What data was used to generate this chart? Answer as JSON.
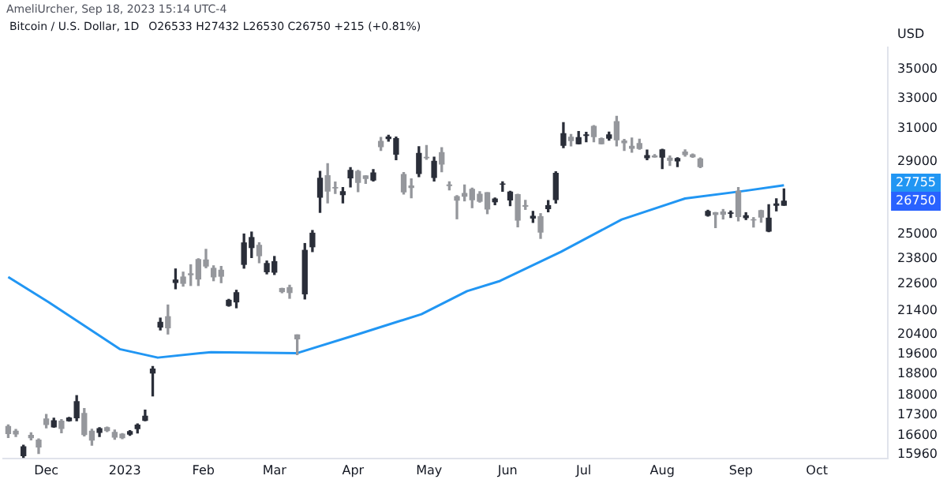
{
  "chart_data": {
    "type": "candlestick",
    "title": "Bitcoin / U.S. Dollar, 1D",
    "subtitle": "O26533 H27432 L26530 C26750 +215 (+0.81%)",
    "ylabel": "USD",
    "annotations": [
      "AmeliUrcher, Sep 18, 2023 15:14 UTC-4",
      {
        "text": "27755",
        "y": 27755
      },
      {
        "text": "26750",
        "y": 26750
      }
    ],
    "log": "y",
    "legend": false,
    "marker": "none",
    "xlim": [
      "2022-11-14",
      "2023-10-29"
    ],
    "xticks": [
      {
        "value": "2022-12-01",
        "label": "Dec"
      },
      {
        "value": "2023-01-01",
        "label": "2023"
      },
      {
        "value": "2023-02-01",
        "label": "Feb"
      },
      {
        "value": "2023-03-01",
        "label": "Mar"
      },
      {
        "value": "2023-04-01",
        "label": "Apr"
      },
      {
        "value": "2023-05-01",
        "label": "May"
      },
      {
        "value": "2023-06-01",
        "label": "Jun"
      },
      {
        "value": "2023-07-01",
        "label": "Jul"
      },
      {
        "value": "2023-08-01",
        "label": "Aug"
      },
      {
        "value": "2023-09-01",
        "label": "Sep"
      },
      {
        "value": "2023-10-01",
        "label": "Oct"
      }
    ],
    "ylim": [
      15840,
      36600
    ],
    "yticks": [
      15960,
      16600,
      17300,
      18000,
      18800,
      19600,
      20400,
      21400,
      22600,
      23800,
      25000,
      29000,
      31000,
      33000,
      35000
    ],
    "series": [
      {
        "type": "candlestick",
        "colors": [
          "#95979c",
          "#95979c",
          "#2a2e39",
          "#95979c",
          "#95979c",
          "#95979c",
          "#2a2e39",
          "#95979c",
          "#2a2e39",
          "#2a2e39",
          "#95979c",
          "#95979c",
          "#2a2e39",
          "#95979c",
          "#95979c",
          "#95979c",
          "#2a2e39",
          "#2a2e39",
          "#2a2e39",
          "#2a2e39",
          "#2a2e39",
          "#95979c",
          "#2a2e39",
          "#95979c",
          "#95979c",
          "#95979c",
          "#95979c",
          "#95979c",
          "#95979c",
          "#2a2e39",
          "#2a2e39",
          "#2a2e39",
          "#2a2e39",
          "#95979c",
          "#2a2e39",
          "#2a2e39",
          "#95979c",
          "#95979c",
          "#95979c",
          "#2a2e39",
          "#2a2e39",
          "#2a2e39",
          "#95979c",
          "#95979c",
          "#2a2e39",
          "#2a2e39",
          "#95979c",
          "#95979c",
          "#2a2e39",
          "#95979c",
          "#2a2e39",
          "#2a2e39",
          "#95979c",
          "#95979c",
          "#2a2e39",
          "#95979c",
          "#2a2e39",
          "#95979c",
          "#95979c",
          "#95979c",
          "#95979c",
          "#95979c",
          "#95979c",
          "#95979c",
          "#2a2e39",
          "#2a2e39",
          "#2a2e39",
          "#95979c",
          "#95979c",
          "#2a2e39",
          "#95979c",
          "#2a2e39",
          "#2a2e39",
          "#2a2e39",
          "#95979c",
          "#2a2e39",
          "#2a2e39",
          "#95979c",
          "#95979c",
          "#2a2e39",
          "#95979c",
          "#95979c",
          "#95979c",
          "#95979c",
          "#2a2e39",
          "#95979c",
          "#2a2e39",
          "#95979c",
          "#2a2e39",
          "#95979c",
          "#95979c",
          "#95979c",
          "#2a2e39",
          "#95979c",
          "#95979c",
          "#2a2e39",
          "#95979c",
          "#2a2e39",
          "#95979c",
          "#95979c",
          "#2a2e39",
          "#2a2e39",
          "#2a2e39"
        ],
        "x": [
          "2022-11-16",
          "2022-11-19",
          "2022-11-22",
          "2022-11-25",
          "2022-11-28",
          "2022-12-01",
          "2022-12-04",
          "2022-12-07",
          "2022-12-10",
          "2022-12-13",
          "2022-12-16",
          "2022-12-19",
          "2022-12-22",
          "2022-12-25",
          "2022-12-28",
          "2022-12-31",
          "2023-01-03",
          "2023-01-06",
          "2023-01-09",
          "2023-01-12",
          "2023-01-15",
          "2023-01-18",
          "2023-01-21",
          "2023-01-24",
          "2023-01-27",
          "2023-01-30",
          "2023-02-02",
          "2023-02-05",
          "2023-02-08",
          "2023-02-11",
          "2023-02-14",
          "2023-02-17",
          "2023-02-20",
          "2023-02-23",
          "2023-02-26",
          "2023-03-01",
          "2023-03-04",
          "2023-03-07",
          "2023-03-10",
          "2023-03-13",
          "2023-03-16",
          "2023-03-19",
          "2023-03-22",
          "2023-03-25",
          "2023-03-28",
          "2023-03-31",
          "2023-04-03",
          "2023-04-06",
          "2023-04-09",
          "2023-04-12",
          "2023-04-15",
          "2023-04-18",
          "2023-04-21",
          "2023-04-24",
          "2023-04-27",
          "2023-04-30",
          "2023-05-03",
          "2023-05-06",
          "2023-05-09",
          "2023-05-12",
          "2023-05-15",
          "2023-05-18",
          "2023-05-21",
          "2023-05-24",
          "2023-05-27",
          "2023-05-30",
          "2023-06-02",
          "2023-06-05",
          "2023-06-08",
          "2023-06-11",
          "2023-06-14",
          "2023-06-17",
          "2023-06-20",
          "2023-06-23",
          "2023-06-26",
          "2023-06-29",
          "2023-07-02",
          "2023-07-05",
          "2023-07-08",
          "2023-07-11",
          "2023-07-14",
          "2023-07-17",
          "2023-07-20",
          "2023-07-23",
          "2023-07-26",
          "2023-07-29",
          "2023-08-01",
          "2023-08-04",
          "2023-08-07",
          "2023-08-10",
          "2023-08-13",
          "2023-08-16",
          "2023-08-19",
          "2023-08-22",
          "2023-08-25",
          "2023-08-28",
          "2023-08-31",
          "2023-09-03",
          "2023-09-06",
          "2023-09-09",
          "2023-09-12",
          "2023-09-15",
          "2023-09-18"
        ],
        "ohlc": [
          [
            16900,
            16960,
            16530,
            16660
          ],
          [
            16740,
            16800,
            16560,
            16650
          ],
          [
            15930,
            16270,
            15870,
            16220
          ],
          [
            16600,
            16690,
            16450,
            16520
          ],
          [
            16440,
            16480,
            16000,
            16210
          ],
          [
            17160,
            17320,
            16860,
            16970
          ],
          [
            16890,
            17190,
            16880,
            17100
          ],
          [
            17090,
            17140,
            16690,
            16840
          ],
          [
            17100,
            17220,
            17090,
            17200
          ],
          [
            17210,
            18000,
            17100,
            17780
          ],
          [
            17360,
            17530,
            16580,
            16630
          ],
          [
            16740,
            16810,
            16270,
            16440
          ],
          [
            16700,
            16860,
            16560,
            16830
          ],
          [
            16860,
            16880,
            16730,
            16760
          ],
          [
            16700,
            16780,
            16470,
            16540
          ],
          [
            16640,
            16660,
            16490,
            16520
          ],
          [
            16640,
            16760,
            16600,
            16730
          ],
          [
            16830,
            16990,
            16680,
            16950
          ],
          [
            17120,
            17480,
            17100,
            17260
          ],
          [
            18850,
            19100,
            17990,
            19000
          ],
          [
            20700,
            21080,
            20580,
            20900
          ],
          [
            21140,
            21650,
            20410,
            20670
          ],
          [
            22670,
            23300,
            22380,
            22780
          ],
          [
            22920,
            23150,
            22500,
            22630
          ],
          [
            23070,
            23500,
            22530,
            23030
          ],
          [
            23750,
            23790,
            22530,
            22830
          ],
          [
            23730,
            24250,
            23360,
            23440
          ],
          [
            23330,
            23450,
            22750,
            22930
          ],
          [
            23240,
            23420,
            22660,
            22960
          ],
          [
            21630,
            21900,
            21600,
            21860
          ],
          [
            21790,
            22310,
            21530,
            22200
          ],
          [
            23520,
            25020,
            23340,
            24570
          ],
          [
            24340,
            25120,
            23850,
            24840
          ],
          [
            24450,
            24580,
            23600,
            23940
          ],
          [
            23170,
            23680,
            23070,
            23560
          ],
          [
            23150,
            23900,
            23040,
            23650
          ],
          [
            22390,
            22400,
            22200,
            22250
          ],
          [
            22430,
            22540,
            21950,
            22210
          ],
          [
            20370,
            20370,
            19570,
            20210
          ],
          [
            22150,
            24540,
            21920,
            24200
          ],
          [
            24380,
            25200,
            24140,
            25060
          ],
          [
            26970,
            28430,
            26150,
            28030
          ],
          [
            28180,
            28880,
            26660,
            27310
          ],
          [
            27500,
            27820,
            27180,
            27480
          ],
          [
            27110,
            27500,
            26660,
            27270
          ],
          [
            28050,
            28650,
            27540,
            28480
          ],
          [
            28430,
            28480,
            27280,
            27800
          ],
          [
            28160,
            28180,
            27740,
            28020
          ],
          [
            27930,
            28530,
            27870,
            28330
          ],
          [
            30220,
            30460,
            29670,
            29890
          ],
          [
            30390,
            30600,
            30230,
            30480
          ],
          [
            29440,
            30480,
            29110,
            30390
          ],
          [
            28240,
            28360,
            27150,
            27260
          ],
          [
            27590,
            28000,
            26940,
            27510
          ],
          [
            28300,
            29890,
            28120,
            29490
          ],
          [
            29250,
            29960,
            29130,
            29230
          ],
          [
            28080,
            29260,
            27880,
            29020
          ],
          [
            29530,
            29830,
            28410,
            28860
          ],
          [
            27650,
            27830,
            27380,
            27620
          ],
          [
            27000,
            27050,
            25810,
            26810
          ],
          [
            27170,
            27650,
            26770,
            27030
          ],
          [
            27400,
            27470,
            26400,
            26830
          ],
          [
            27130,
            27270,
            26700,
            26750
          ],
          [
            27220,
            27220,
            26080,
            26330
          ],
          [
            26720,
            26930,
            26560,
            26870
          ],
          [
            27700,
            27830,
            27300,
            27700
          ],
          [
            26820,
            27300,
            26510,
            27250
          ],
          [
            27110,
            27130,
            25390,
            25740
          ],
          [
            26510,
            26800,
            26310,
            26480
          ],
          [
            25850,
            26200,
            25620,
            25940
          ],
          [
            25920,
            26080,
            24800,
            25120
          ],
          [
            26350,
            26780,
            26180,
            26510
          ],
          [
            26840,
            28400,
            26650,
            28310
          ],
          [
            29980,
            31400,
            29830,
            30690
          ],
          [
            30470,
            30650,
            29940,
            30270
          ],
          [
            30080,
            30830,
            30060,
            30450
          ],
          [
            30590,
            30780,
            30200,
            30620
          ],
          [
            31150,
            31200,
            30200,
            30510
          ],
          [
            30390,
            30420,
            30060,
            30080
          ],
          [
            30410,
            30800,
            30300,
            30620
          ],
          [
            31460,
            31800,
            29940,
            30320
          ],
          [
            30240,
            30340,
            29670,
            30140
          ],
          [
            29920,
            30420,
            29560,
            29800
          ],
          [
            30080,
            30350,
            29740,
            29790
          ],
          [
            29230,
            29690,
            29110,
            29350
          ],
          [
            29330,
            29410,
            29260,
            29280
          ],
          [
            29270,
            29740,
            28590,
            29700
          ],
          [
            29200,
            29330,
            28780,
            29080
          ],
          [
            29040,
            29230,
            28700,
            29180
          ],
          [
            29570,
            29700,
            29320,
            29420
          ],
          [
            29400,
            29450,
            29250,
            29290
          ],
          [
            29160,
            29220,
            28650,
            28710
          ],
          [
            25990,
            26260,
            25950,
            26200
          ],
          [
            26130,
            26140,
            25350,
            26040
          ],
          [
            26170,
            26300,
            25800,
            26050
          ],
          [
            26100,
            26220,
            25880,
            26120
          ],
          [
            27290,
            27500,
            25700,
            25930
          ],
          [
            25870,
            26130,
            25770,
            25970
          ],
          [
            25760,
            25870,
            25380,
            25750
          ],
          [
            26240,
            26260,
            25630,
            25900
          ],
          [
            25170,
            26560,
            25140,
            25840
          ],
          [
            26530,
            26880,
            26230,
            26600
          ],
          [
            26533,
            27432,
            26530,
            26750
          ]
        ]
      },
      {
        "type": "line",
        "color": "#2196f3",
        "x": [
          "2022-11-16",
          "2022-12-02",
          "2022-12-30",
          "2023-01-14",
          "2023-02-04",
          "2023-03-10",
          "2023-04-03",
          "2023-04-28",
          "2023-05-16",
          "2023-05-29",
          "2023-06-22",
          "2023-07-16",
          "2023-08-10",
          "2023-09-03",
          "2023-09-18"
        ],
        "values": [
          22920,
          21770,
          19790,
          19450,
          19670,
          19630,
          20400,
          21250,
          22270,
          22740,
          24130,
          25770,
          26900,
          27330,
          27630
        ]
      }
    ]
  }
}
